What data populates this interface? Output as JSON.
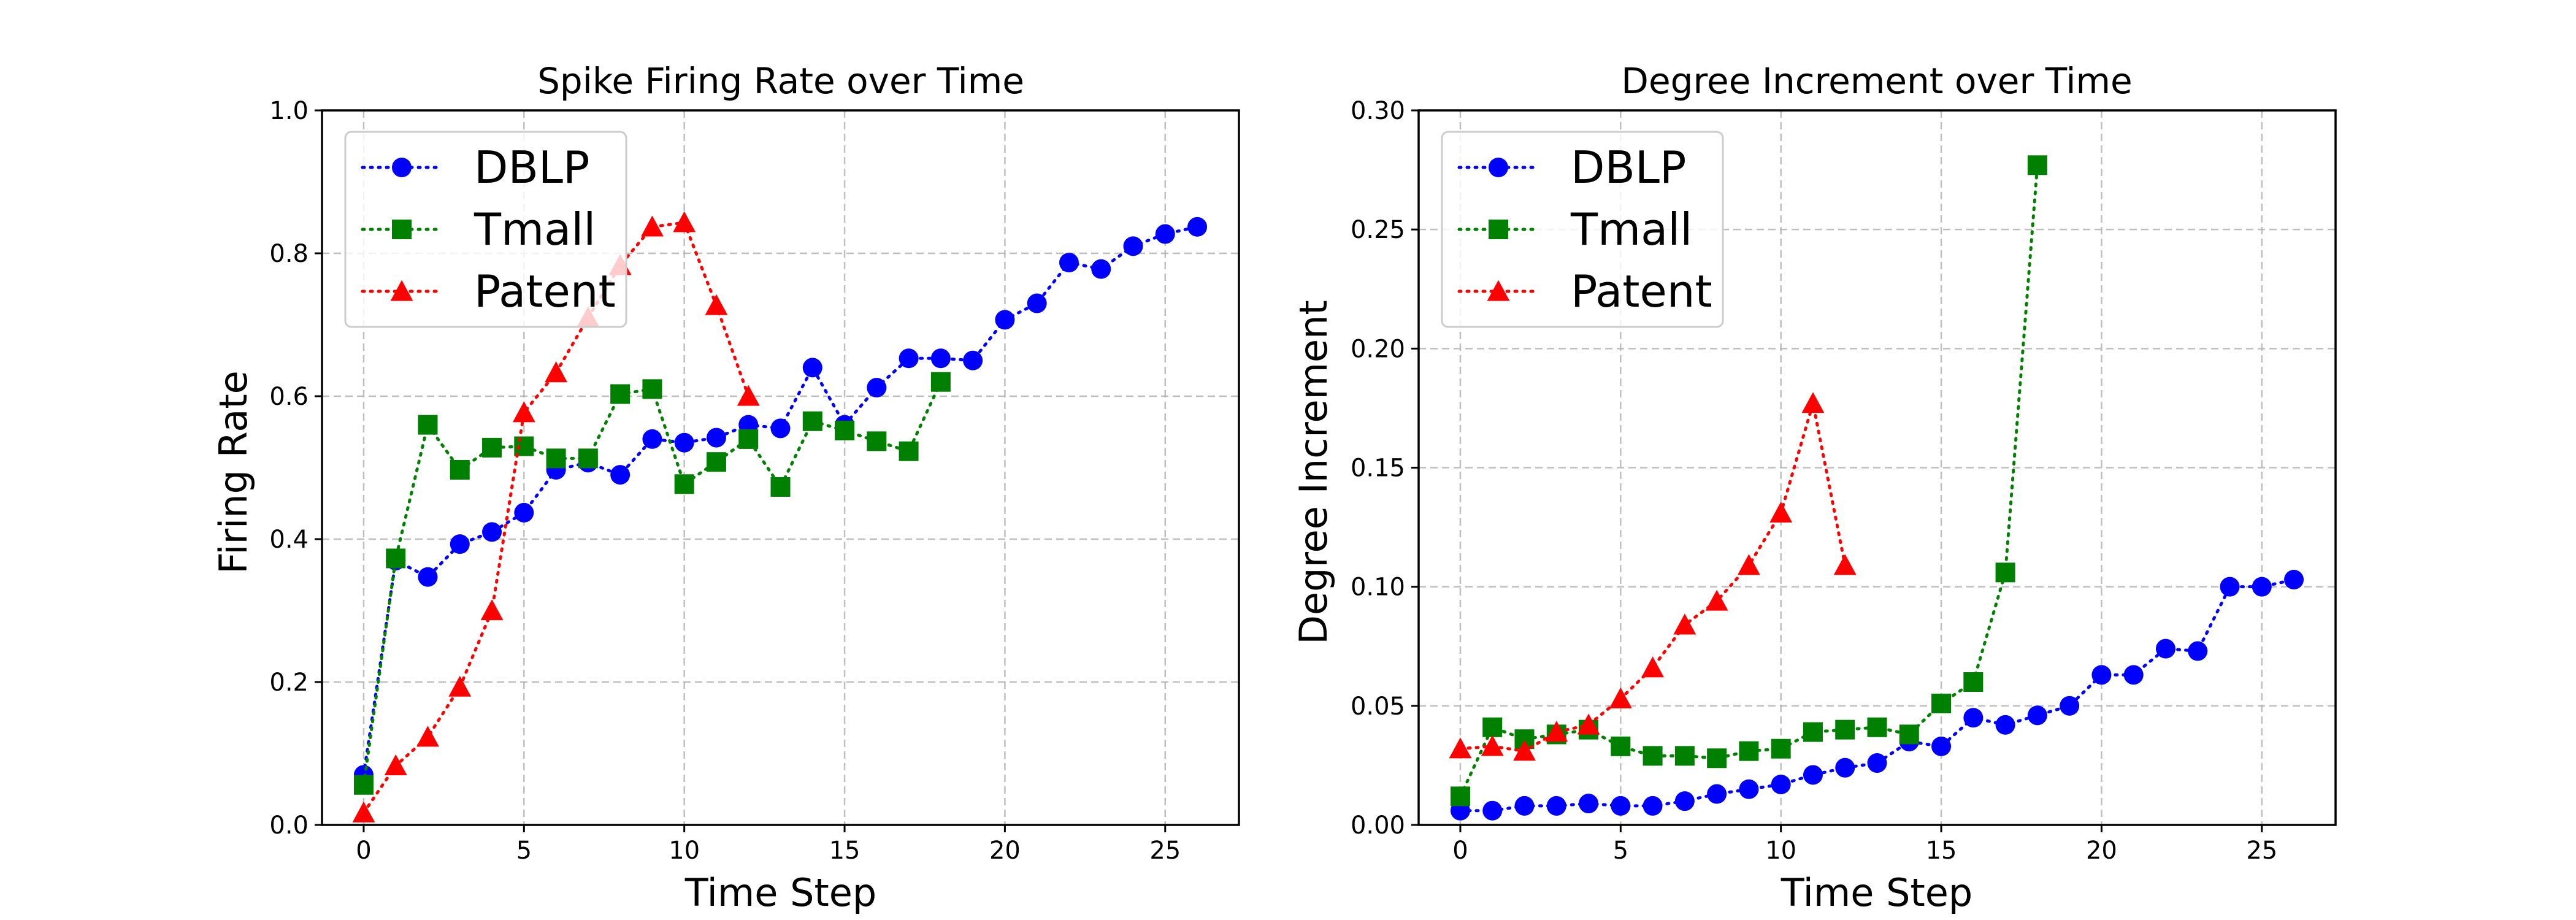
{
  "chart_data": [
    {
      "type": "line",
      "title": "Spike Firing Rate over Time",
      "xlabel": "Time Step",
      "ylabel": "Firing Rate",
      "xlim": [
        -1.3,
        27.3
      ],
      "ylim": [
        0.0,
        1.0
      ],
      "xticks": [
        0,
        5,
        10,
        15,
        20,
        25
      ],
      "xtick_labels": [
        "0",
        "5",
        "10",
        "15",
        "20",
        "25"
      ],
      "yticks": [
        0.0,
        0.2,
        0.4,
        0.6,
        0.8,
        1.0
      ],
      "ytick_labels": [
        "0.0",
        "0.2",
        "0.4",
        "0.6",
        "0.8",
        "1.0"
      ],
      "grid": true,
      "legend_position": "upper-left",
      "series": [
        {
          "name": "DBLP",
          "color": "#0000ff",
          "marker": "circle",
          "x": [
            0,
            1,
            2,
            3,
            4,
            5,
            6,
            7,
            8,
            9,
            10,
            11,
            12,
            13,
            14,
            15,
            16,
            17,
            18,
            19,
            20,
            21,
            22,
            23,
            24,
            25,
            26
          ],
          "values": [
            0.07,
            0.37,
            0.347,
            0.393,
            0.41,
            0.437,
            0.497,
            0.507,
            0.49,
            0.54,
            0.535,
            0.542,
            0.56,
            0.555,
            0.64,
            0.56,
            0.612,
            0.653,
            0.653,
            0.65,
            0.707,
            0.73,
            0.787,
            0.778,
            0.81,
            0.827,
            0.837
          ]
        },
        {
          "name": "Tmall",
          "color": "#008000",
          "marker": "square",
          "x": [
            0,
            1,
            2,
            3,
            4,
            5,
            6,
            7,
            8,
            9,
            10,
            11,
            12,
            13,
            14,
            15,
            16,
            17,
            18
          ],
          "values": [
            0.056,
            0.373,
            0.56,
            0.497,
            0.528,
            0.53,
            0.513,
            0.513,
            0.603,
            0.61,
            0.477,
            0.508,
            0.54,
            0.473,
            0.565,
            0.552,
            0.537,
            0.523,
            0.62
          ]
        },
        {
          "name": "Patent",
          "color": "#ff0000",
          "marker": "triangle",
          "x": [
            0,
            1,
            2,
            3,
            4,
            5,
            6,
            7,
            8,
            9,
            10,
            11,
            12
          ],
          "values": [
            0.017,
            0.083,
            0.123,
            0.193,
            0.3,
            0.577,
            0.633,
            0.71,
            0.783,
            0.837,
            0.843,
            0.727,
            0.6
          ]
        }
      ]
    },
    {
      "type": "line",
      "title": "Degree Increment over Time",
      "xlabel": "Time Step",
      "ylabel": "Degree Increment",
      "xlim": [
        -1.3,
        27.3
      ],
      "ylim": [
        0.0,
        0.3
      ],
      "xticks": [
        0,
        5,
        10,
        15,
        20,
        25
      ],
      "xtick_labels": [
        "0",
        "5",
        "10",
        "15",
        "20",
        "25"
      ],
      "yticks": [
        0.0,
        0.05,
        0.1,
        0.15,
        0.2,
        0.25,
        0.3
      ],
      "ytick_labels": [
        "0.00",
        "0.05",
        "0.10",
        "0.15",
        "0.20",
        "0.25",
        "0.30"
      ],
      "grid": true,
      "legend_position": "upper-left",
      "series": [
        {
          "name": "DBLP",
          "color": "#0000ff",
          "marker": "circle",
          "x": [
            0,
            1,
            2,
            3,
            4,
            5,
            6,
            7,
            8,
            9,
            10,
            11,
            12,
            13,
            14,
            15,
            16,
            17,
            18,
            19,
            20,
            21,
            22,
            23,
            24,
            25,
            26
          ],
          "values": [
            0.006,
            0.006,
            0.008,
            0.008,
            0.009,
            0.008,
            0.008,
            0.01,
            0.013,
            0.015,
            0.017,
            0.021,
            0.024,
            0.026,
            0.035,
            0.033,
            0.045,
            0.042,
            0.046,
            0.05,
            0.063,
            0.063,
            0.074,
            0.073,
            0.1,
            0.1,
            0.103
          ]
        },
        {
          "name": "Tmall",
          "color": "#008000",
          "marker": "square",
          "x": [
            0,
            1,
            2,
            3,
            4,
            5,
            6,
            7,
            8,
            9,
            10,
            11,
            12,
            13,
            14,
            15,
            16,
            17,
            18
          ],
          "values": [
            0.012,
            0.041,
            0.036,
            0.038,
            0.04,
            0.033,
            0.029,
            0.029,
            0.028,
            0.031,
            0.032,
            0.039,
            0.04,
            0.041,
            0.038,
            0.051,
            0.06,
            0.106,
            0.277
          ]
        },
        {
          "name": "Patent",
          "color": "#ff0000",
          "marker": "triangle",
          "x": [
            0,
            1,
            2,
            3,
            4,
            5,
            6,
            7,
            8,
            9,
            10,
            11,
            12
          ],
          "values": [
            0.032,
            0.033,
            0.031,
            0.039,
            0.042,
            0.053,
            0.066,
            0.084,
            0.094,
            0.109,
            0.131,
            0.177,
            0.109
          ]
        }
      ]
    }
  ]
}
